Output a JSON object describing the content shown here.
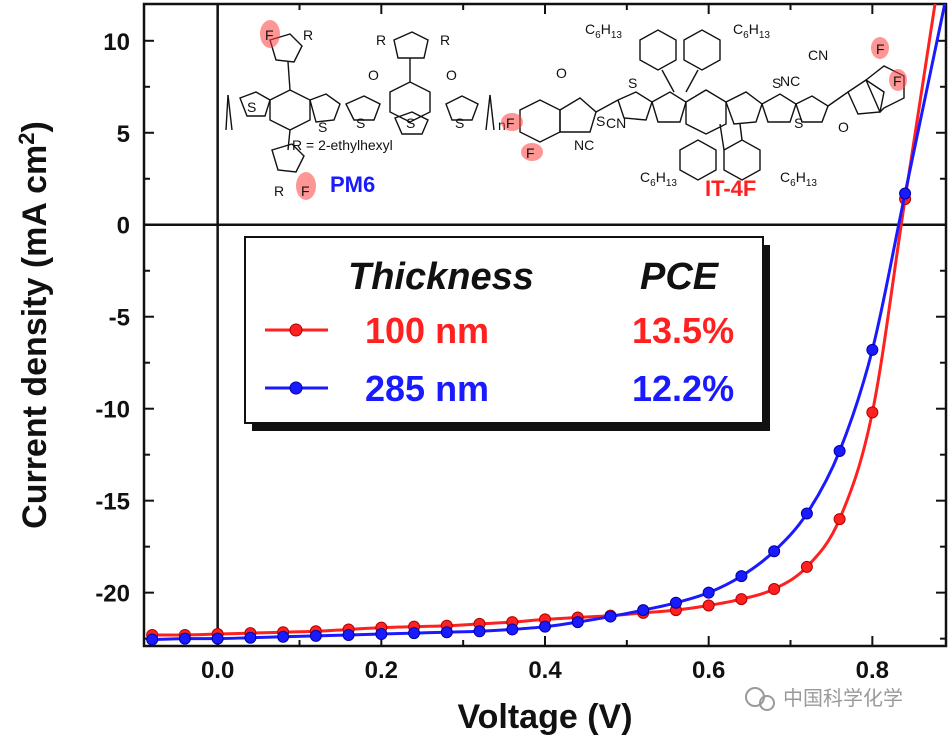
{
  "chart_data": {
    "type": "line",
    "xlabel": "Voltage (V)",
    "ylabel": "Current density (mA cm",
    "ylabel_sup": "2",
    "ylabel_close": ")",
    "xlim": [
      -0.09,
      0.89
    ],
    "ylim": [
      -22.9,
      12.0
    ],
    "xticks": [
      0.0,
      0.2,
      0.4,
      0.6,
      0.8
    ],
    "xtick_labels": [
      "0.0",
      "0.2",
      "0.4",
      "0.6",
      "0.8"
    ],
    "yticks": [
      10,
      5,
      0,
      -5,
      -10,
      -15,
      -20
    ],
    "ytick_labels": [
      "10",
      "5",
      "0",
      "-5",
      "-10",
      "-15",
      "-20"
    ],
    "legend": {
      "header_thickness": "Thickness",
      "header_pce": "PCE",
      "entries": [
        {
          "thickness": "100 nm",
          "pce": "13.5%"
        },
        {
          "thickness": "285 nm",
          "pce": "12.2%"
        }
      ]
    },
    "series": [
      {
        "name": "100 nm",
        "color": "#ff2020",
        "x": [
          -0.08,
          -0.04,
          0.0,
          0.04,
          0.08,
          0.12,
          0.16,
          0.2,
          0.24,
          0.28,
          0.32,
          0.36,
          0.4,
          0.44,
          0.48,
          0.52,
          0.56,
          0.6,
          0.64,
          0.68,
          0.72,
          0.76,
          0.8,
          0.84
        ],
        "y": [
          -22.3,
          -22.3,
          -22.25,
          -22.2,
          -22.15,
          -22.1,
          -22.0,
          -21.9,
          -21.85,
          -21.8,
          -21.7,
          -21.6,
          -21.45,
          -21.35,
          -21.25,
          -21.1,
          -20.95,
          -20.7,
          -20.35,
          -19.8,
          -18.6,
          -16.0,
          -10.2,
          1.4
        ]
      },
      {
        "name": "285 nm",
        "color": "#1a1aff",
        "x": [
          -0.08,
          -0.04,
          0.0,
          0.04,
          0.08,
          0.12,
          0.16,
          0.2,
          0.24,
          0.28,
          0.32,
          0.36,
          0.4,
          0.44,
          0.48,
          0.52,
          0.56,
          0.6,
          0.64,
          0.68,
          0.72,
          0.76,
          0.8,
          0.84
        ],
        "y": [
          -22.55,
          -22.5,
          -22.5,
          -22.45,
          -22.4,
          -22.35,
          -22.3,
          -22.25,
          -22.2,
          -22.15,
          -22.1,
          -22.0,
          -21.85,
          -21.6,
          -21.3,
          -20.95,
          -20.55,
          -20.0,
          -19.1,
          -17.75,
          -15.7,
          -12.3,
          -6.8,
          1.7
        ]
      }
    ]
  },
  "molecules": {
    "pm6_name": "PM6",
    "pm6_r_note": "R = 2-ethylhexyl",
    "itf_name": "IT-4F"
  },
  "watermark": "中国科学化学"
}
